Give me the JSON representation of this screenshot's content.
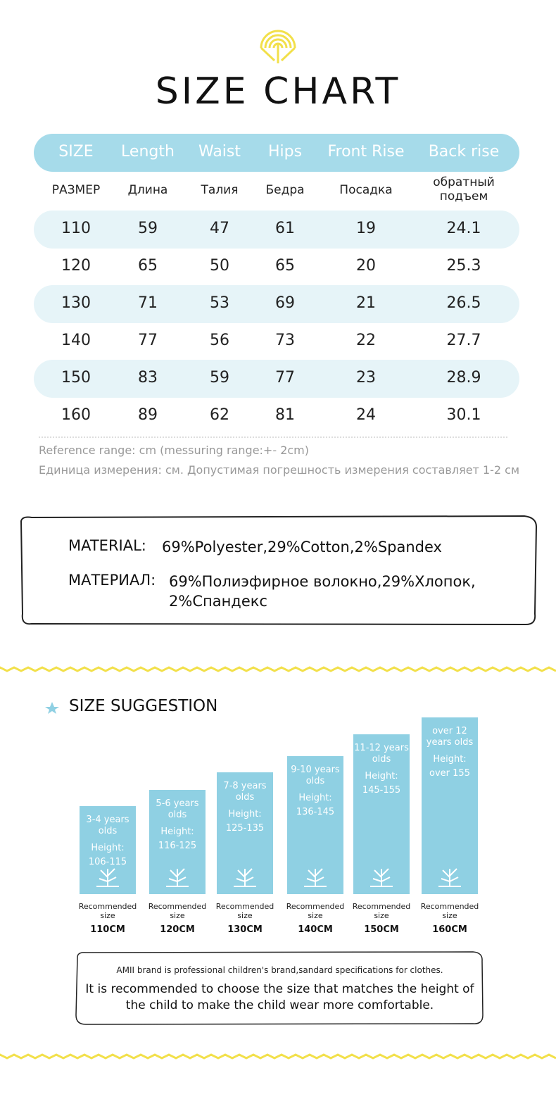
{
  "title": "SIZE CHART",
  "table": {
    "header": [
      "SIZE",
      "Length",
      "Waist",
      "Hips",
      "Front Rise",
      "Back rise"
    ],
    "header_ru": [
      "РАЗМЕР",
      "Длина",
      "Талия",
      "Бедра",
      "Посадка",
      "обратный подъем"
    ],
    "rows": [
      [
        110,
        59,
        47,
        61,
        19,
        24.1
      ],
      [
        120,
        65,
        50,
        65,
        20,
        25.3
      ],
      [
        130,
        71,
        53,
        69,
        21,
        26.5
      ],
      [
        140,
        77,
        56,
        73,
        22,
        27.7
      ],
      [
        150,
        83,
        59,
        77,
        23,
        28.9
      ],
      [
        160,
        89,
        62,
        81,
        24,
        30.1
      ]
    ]
  },
  "notes": [
    "Reference range: cm (messuring range:+- 2cm)",
    "Единица измерения: см. Допустимая погрешность измерения составляет 1-2 см"
  ],
  "material": {
    "rows": [
      {
        "label": "MATERIAL:",
        "value": "69%Polyester,29%Cotton,2%Spandex"
      },
      {
        "label": "МАТЕРИАЛ:",
        "value": "69%Полиэфирное волокно,29%Хлопок, 2%Спандекс"
      }
    ]
  },
  "suggestion": {
    "title": "SIZE SUGGESTION",
    "cards": [
      {
        "age": "3-4 years olds",
        "height_label": "Height:",
        "height": "106-115",
        "recommended": "Recommended size",
        "size": "110CM"
      },
      {
        "age": "5-6 years olds",
        "height_label": "Height:",
        "height": "116-125",
        "recommended": "Recommended size",
        "size": "120CM"
      },
      {
        "age": "7-8 years olds",
        "height_label": "Height:",
        "height": "125-135",
        "recommended": "Recommended size",
        "size": "130CM"
      },
      {
        "age": "9-10 years olds",
        "height_label": "Height:",
        "height": "136-145",
        "recommended": "Recommended size",
        "size": "140CM"
      },
      {
        "age": "11-12 years olds",
        "height_label": "Height:",
        "height": "145-155",
        "recommended": "Recommended size",
        "size": "150CM"
      },
      {
        "age": "over 12 years olds",
        "height_label": "Height:",
        "height": "over 155",
        "recommended": "Recommended size",
        "size": "160CM"
      }
    ]
  },
  "footer": {
    "line1": "AMII brand is professional children's brand,sandard specifications for clothes.",
    "line2": "It is recommended to choose the size that matches the height of the child to make the child wear more comfortable."
  }
}
